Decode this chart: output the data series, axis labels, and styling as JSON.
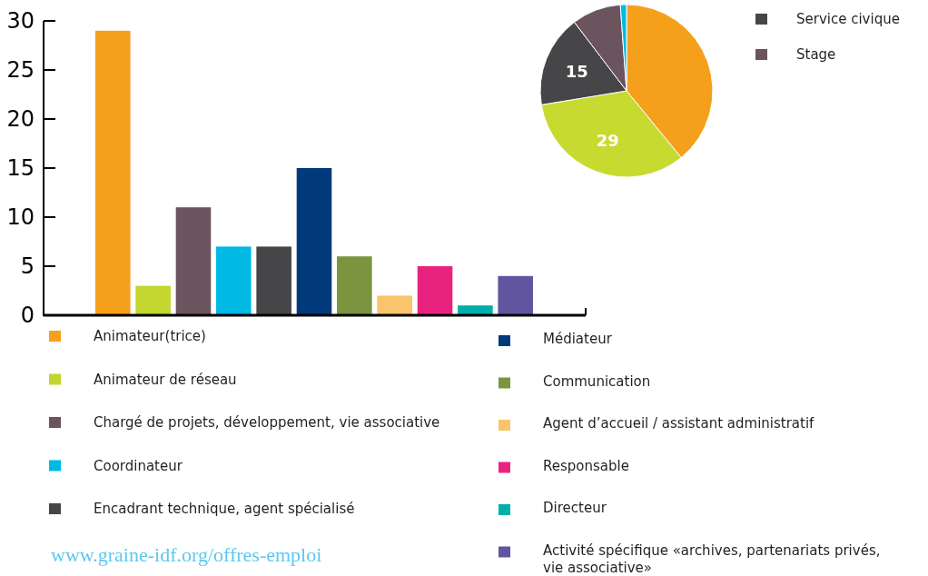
{
  "chart_data": [
    {
      "type": "bar",
      "categories": [
        null
      ],
      "series": [
        {
          "name": "Animateur(trice)",
          "color": "#f5a01a",
          "values": [
            29
          ]
        },
        {
          "name": "Animateur de réseau",
          "color": "#c3d62f",
          "values": [
            3
          ]
        },
        {
          "name": "Chargé de projets, développement, vie associative",
          "color": "#6b545e",
          "values": [
            11
          ]
        },
        {
          "name": "Coordinateur",
          "color": "#00b9e4",
          "values": [
            7
          ]
        },
        {
          "name": "Encadrant technique, agent spécialisé",
          "color": "#464547",
          "values": [
            7
          ]
        },
        {
          "name": "Médiateur",
          "color": "#003a7a",
          "values": [
            15
          ]
        },
        {
          "name": "Communication",
          "color": "#7b953e",
          "values": [
            6
          ]
        },
        {
          "name": "Agent d’accueil / assistant administratif",
          "color": "#f9c46c",
          "values": [
            2
          ]
        },
        {
          "name": "Responsable",
          "color": "#e8237f",
          "values": [
            5
          ]
        },
        {
          "name": "Directeur",
          "color": "#00afaa",
          "values": [
            1
          ]
        },
        {
          "name": "Activité spécifique «archives, partenariats privés, vie associative»",
          "color": "#6255a0",
          "values": [
            4
          ]
        }
      ],
      "ylim": [
        0,
        30
      ],
      "yticks": [
        0,
        5,
        10,
        15,
        20,
        25,
        30
      ],
      "tick_labels": "y",
      "legend": "bottom",
      "annotations": [
        "www.graine-idf.org/offres-emploi"
      ]
    },
    {
      "type": "pie",
      "categories": [
        null,
        null,
        "Service civique",
        "Stage",
        null
      ],
      "values": [
        34,
        29,
        15,
        8,
        1
      ],
      "colors": [
        "#f5a01a",
        "#c7da2f",
        "#464547",
        "#6b545e",
        "#00b9e4"
      ],
      "value_labels": [
        null,
        "29",
        "15",
        null,
        null
      ],
      "legend": "right"
    }
  ]
}
